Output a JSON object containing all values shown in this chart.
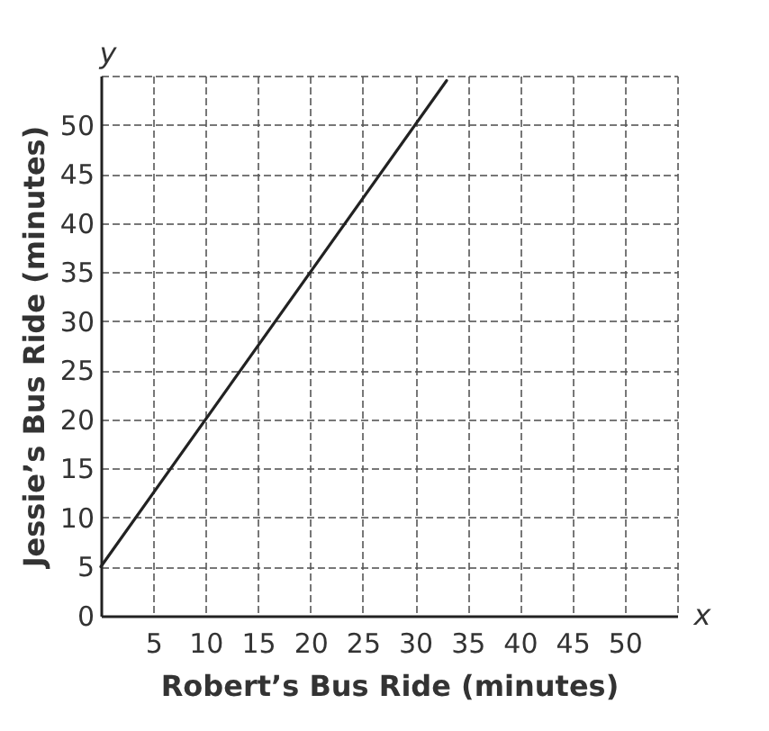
{
  "chart_data": {
    "type": "line",
    "xlabel": "Robert’s Bus Ride (minutes)",
    "ylabel": "Jessie’s Bus Ride (minutes)",
    "annotations": [
      "x",
      "y"
    ],
    "x": [
      0,
      33
    ],
    "series": [
      {
        "color": "#222222",
        "values": [
          5,
          54.5
        ]
      }
    ],
    "xlim": [
      0,
      55
    ],
    "ylim": [
      0,
      55
    ],
    "xticks": [
      {
        "value": 0,
        "label": null
      },
      5,
      10,
      15,
      20,
      25,
      30,
      35,
      40,
      45,
      50,
      {
        "value": 55,
        "label": null
      }
    ],
    "yticks": [
      0,
      5,
      10,
      15,
      20,
      25,
      30,
      35,
      40,
      45,
      50,
      {
        "value": 55,
        "label": null
      }
    ],
    "grid": true,
    "marker": "none",
    "line_style": "solid"
  }
}
